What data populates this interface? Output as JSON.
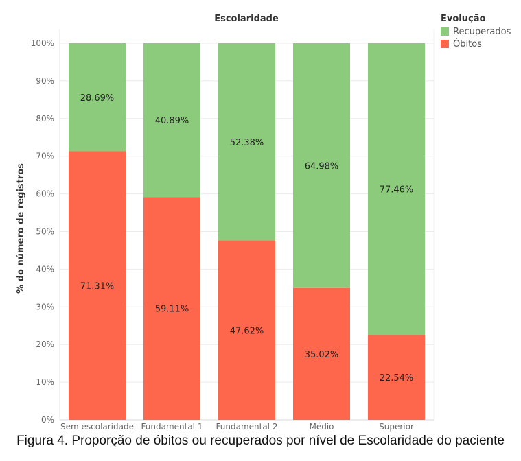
{
  "chart_data": {
    "type": "bar",
    "stacked": true,
    "title": "Escolaridade",
    "ylabel": "% do número de registros",
    "xlabel": "",
    "ylim": [
      0,
      100
    ],
    "yticks": [
      "0%",
      "10%",
      "20%",
      "30%",
      "40%",
      "50%",
      "60%",
      "70%",
      "80%",
      "90%",
      "100%"
    ],
    "categories": [
      "Sem escolaridade",
      "Fundamental 1",
      "Fundamental 2",
      "Médio",
      "Superior"
    ],
    "series": [
      {
        "name": "Óbitos",
        "color": "#fe674b",
        "values": [
          71.31,
          59.11,
          47.62,
          35.02,
          22.54
        ],
        "labels": [
          "71.31%",
          "59.11%",
          "47.62%",
          "35.02%",
          "22.54%"
        ]
      },
      {
        "name": "Recuperados",
        "color": "#8dcb7c",
        "values": [
          28.69,
          40.89,
          52.38,
          64.98,
          77.46
        ],
        "labels": [
          "28.69%",
          "40.89%",
          "52.38%",
          "64.98%",
          "77.46%"
        ]
      }
    ],
    "legend": {
      "title": "Evolução",
      "position": "top-right",
      "items": [
        {
          "name": "Recuperados",
          "color": "#8dcb7c"
        },
        {
          "name": "Óbitos",
          "color": "#fe674b"
        }
      ]
    },
    "grid": true
  },
  "caption": "Figura 4. Proporção de óbitos ou recuperados por nível de Escolaridade do paciente"
}
